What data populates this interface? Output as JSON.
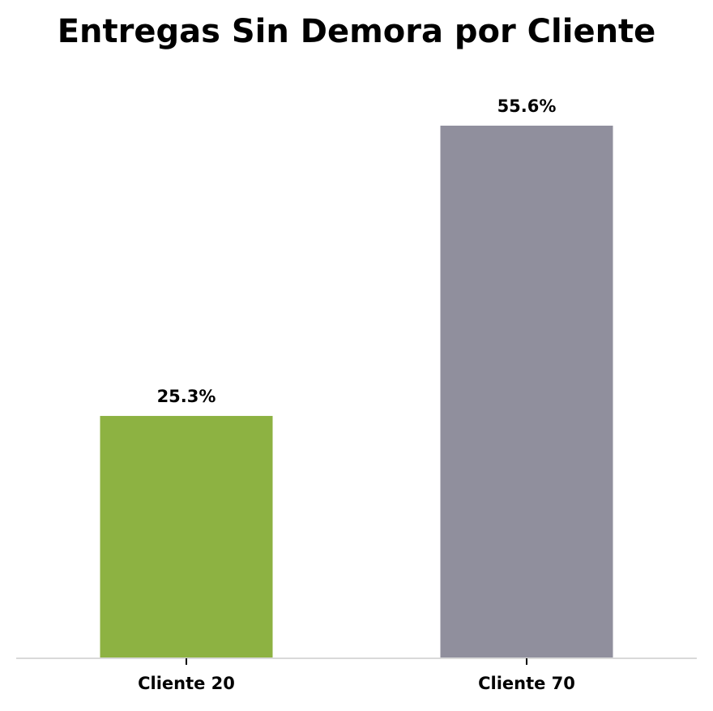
{
  "chart_data": {
    "type": "bar",
    "title": "Entregas Sin Demora por Cliente",
    "xlabel": "",
    "ylabel": "",
    "categories": [
      "Cliente 20",
      "Cliente 70"
    ],
    "values": [
      25.3,
      55.6
    ],
    "value_labels": [
      "25.3%",
      "55.6%"
    ],
    "ylim": [
      0,
      58
    ],
    "grid": false,
    "legend": "none",
    "colors": [
      "#8db242",
      "#908f9d"
    ],
    "axis_color": "#d9d9d9",
    "tick_color": "#000000"
  }
}
